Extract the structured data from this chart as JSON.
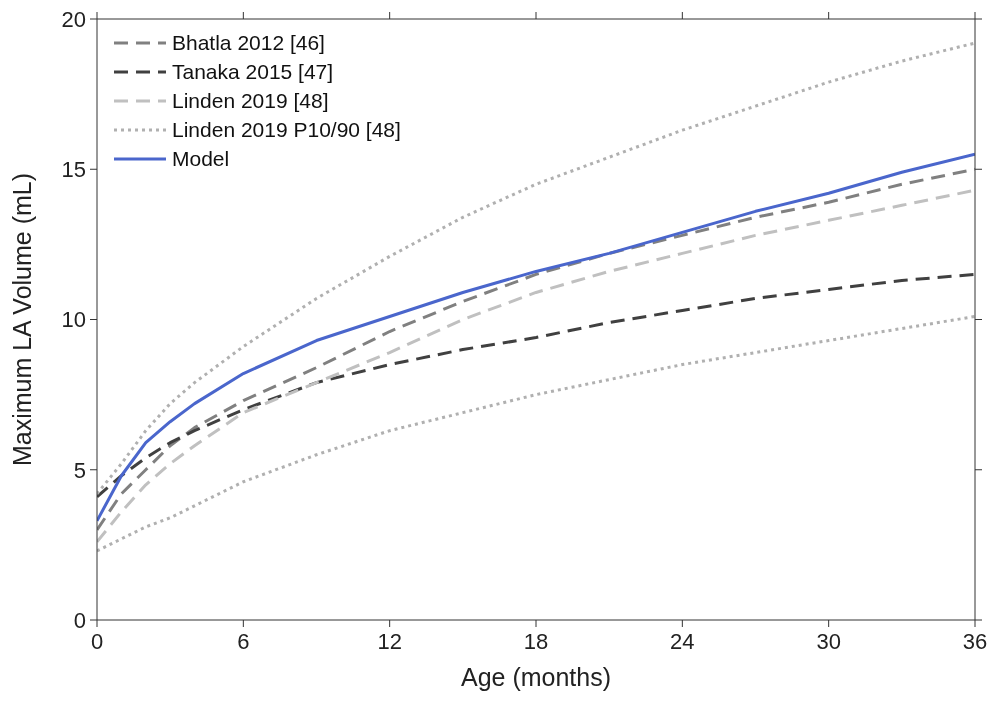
{
  "chart_data": {
    "type": "line",
    "xlabel": "Age (months)",
    "ylabel": "Maximum LA Volume (mL)",
    "x": [
      0,
      1,
      2,
      3,
      4,
      6,
      9,
      12,
      15,
      18,
      21,
      24,
      27,
      30,
      33,
      36
    ],
    "xlim": [
      0,
      36
    ],
    "xticks": [
      0,
      6,
      12,
      18,
      24,
      30,
      36
    ],
    "ylim": [
      0,
      20
    ],
    "yticks": [
      0,
      5,
      10,
      15,
      20
    ],
    "grid": false,
    "legend": "top left",
    "marker": "none",
    "series": [
      {
        "name": "Bhatla 2012 [46]",
        "color": "#808080",
        "line_style": "dashed",
        "values": [
          3.0,
          4.2,
          5.0,
          5.8,
          6.4,
          7.3,
          8.4,
          9.6,
          10.6,
          11.5,
          12.2,
          12.8,
          13.4,
          13.9,
          14.5,
          15.0
        ]
      },
      {
        "name": "Tanaka 2015 [47]",
        "color": "#404040",
        "line_style": "dashed",
        "values": [
          4.1,
          4.8,
          5.4,
          5.9,
          6.3,
          7.0,
          7.9,
          8.5,
          9.0,
          9.4,
          9.9,
          10.3,
          10.7,
          11.0,
          11.3,
          11.5
        ]
      },
      {
        "name": "Linden 2019 [48]",
        "color": "#c0c0c0",
        "line_style": "dashed",
        "values": [
          2.6,
          3.6,
          4.5,
          5.2,
          5.8,
          6.9,
          7.9,
          8.9,
          10.0,
          10.9,
          11.6,
          12.2,
          12.8,
          13.3,
          13.8,
          14.3
        ]
      },
      {
        "name": "Linden 2019 P10/90 [48]",
        "color": "#b0b0b0",
        "line_style": "dotted",
        "values": [
          4.2,
          5.2,
          6.3,
          7.2,
          7.9,
          9.1,
          10.7,
          12.1,
          13.4,
          14.5,
          15.4,
          16.3,
          17.1,
          17.9,
          18.6,
          19.2
        ]
      },
      {
        "color": "#b0b0b0",
        "line_style": "dotted",
        "values": [
          2.3,
          2.7,
          3.1,
          3.4,
          3.8,
          4.6,
          5.5,
          6.3,
          6.9,
          7.5,
          8.0,
          8.5,
          8.9,
          9.3,
          9.7,
          10.1
        ]
      },
      {
        "name": "Model",
        "color": "#4a66cc",
        "line_style": "solid",
        "values": [
          3.3,
          4.8,
          5.9,
          6.6,
          7.2,
          8.2,
          9.3,
          10.1,
          10.9,
          11.6,
          12.2,
          12.9,
          13.6,
          14.2,
          14.9,
          15.5
        ]
      }
    ]
  }
}
